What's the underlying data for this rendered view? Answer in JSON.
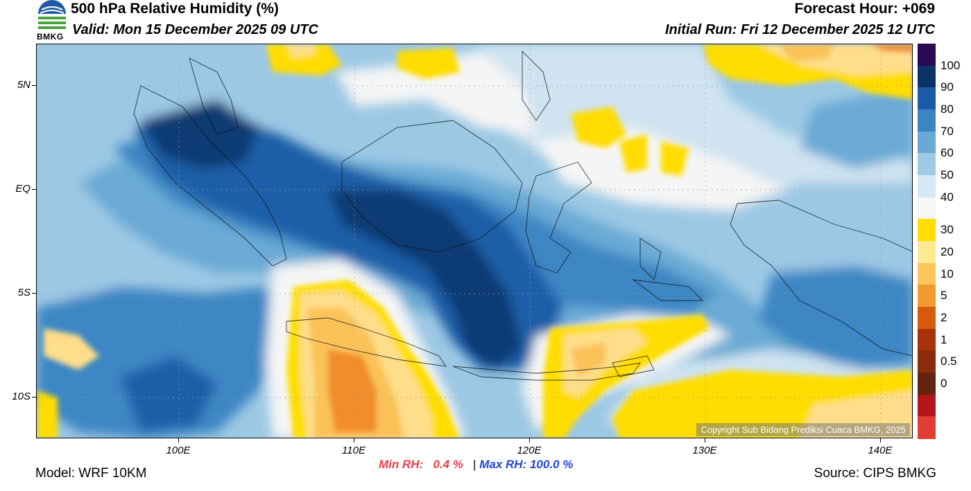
{
  "header": {
    "title": "500 hPa Relative Humidity (%)",
    "valid": "Valid: Mon 15 December 2025 09 UTC",
    "forecast_hour": "Forecast Hour: +069",
    "initial_run": "Initial Run: Fri 12 December 2025 12 UTC",
    "logo_text": "BMKG"
  },
  "map": {
    "lat_labels": [
      "5N",
      "EQ",
      "5S",
      "10S"
    ],
    "lon_labels": [
      "100E",
      "110E",
      "120E",
      "130E",
      "140E"
    ],
    "copyright": "Copyright Sub Bidang Prediksi Cuaca BMKG, 2025",
    "colors": {
      "very_dry": "#f18d2a",
      "dry": "#fbc258",
      "moderate": "#fede8a",
      "yellow": "#ffdd00",
      "white": "#f5f5f5",
      "light_blue": "#cfe3f0",
      "sky": "#9cc8e4",
      "blue": "#6aaad5",
      "mid_blue": "#3c87c4",
      "deep_blue": "#1b5fa8",
      "navy": "#0c3a73"
    }
  },
  "colorbar": {
    "labels": [
      "100",
      "90",
      "80",
      "70",
      "60",
      "50",
      "40",
      "30",
      "20",
      "10",
      "5",
      "2",
      "1",
      "0.5",
      "0"
    ],
    "colors": [
      "#2a0a55",
      "#0b3368",
      "#1a5aa6",
      "#3b85c3",
      "#6aa9d5",
      "#a0cae4",
      "#d6e8f3",
      "#f6f6f6",
      "#ffdd00",
      "#ffe993",
      "#fdc55c",
      "#f39a31",
      "#d85a0d",
      "#a8330a",
      "#8a2b0c",
      "#62230f",
      "#b2151b",
      "#e23d32"
    ]
  },
  "stats": {
    "min_label": "Min RH:",
    "min_value": "0.4 %",
    "separator": "|",
    "max_label": "Max RH:",
    "max_value": "100.0 %"
  },
  "footer": {
    "model": "Model: WRF 10KM",
    "source": "Source: CIPS BMKG"
  }
}
